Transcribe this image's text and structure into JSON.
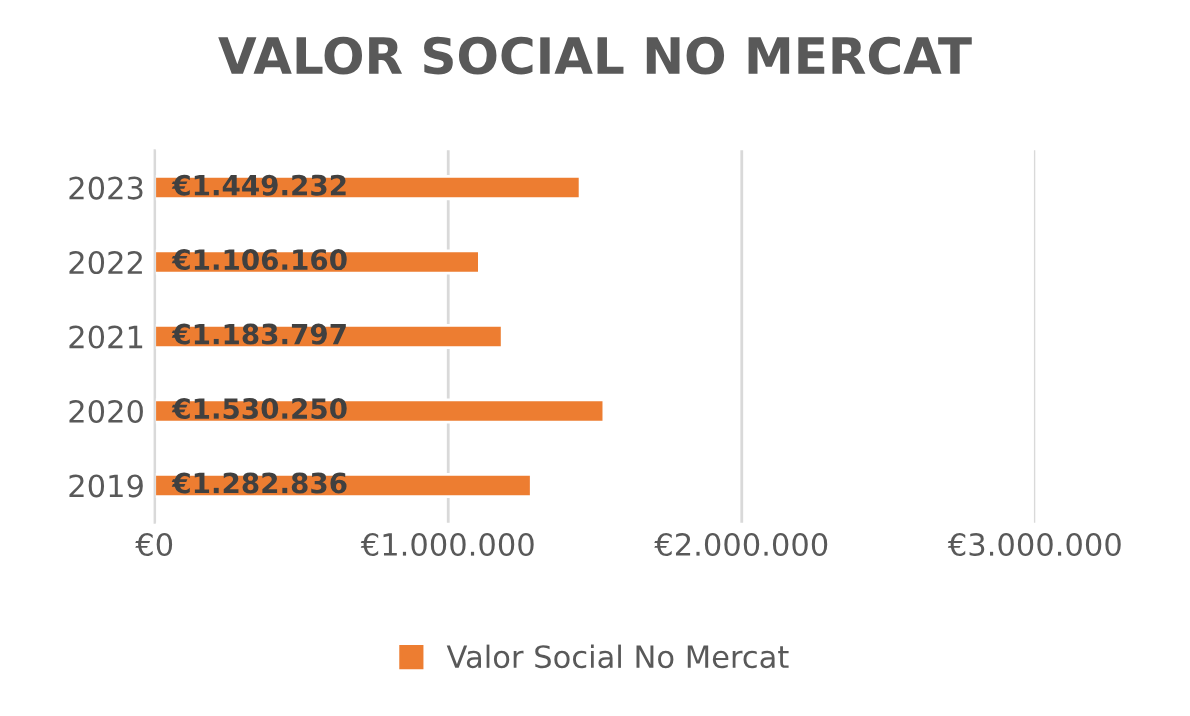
{
  "chart_data": {
    "type": "bar",
    "orientation": "horizontal",
    "title": "VALOR SOCIAL NO MERCAT",
    "categories": [
      "2023",
      "2022",
      "2021",
      "2020",
      "2019"
    ],
    "series": [
      {
        "name": "Valor Social No Mercat",
        "color": "#ed7d31",
        "values": [
          1449232,
          1106160,
          1183797,
          1530250,
          1282836
        ],
        "value_labels": [
          "€1.449.232",
          "€1.106.160",
          "€1.183.797",
          "€1.530.250",
          "€1.282.836"
        ]
      }
    ],
    "xlim": [
      0,
      3000000
    ],
    "xticks": [
      {
        "value": 0,
        "label": "€0"
      },
      {
        "value": 1000000,
        "label": "€1.000.000"
      },
      {
        "value": 2000000,
        "label": "€2.000.000"
      },
      {
        "value": 3000000,
        "label": "€3.000.000"
      }
    ],
    "grid": "x",
    "legend": "bottom"
  }
}
